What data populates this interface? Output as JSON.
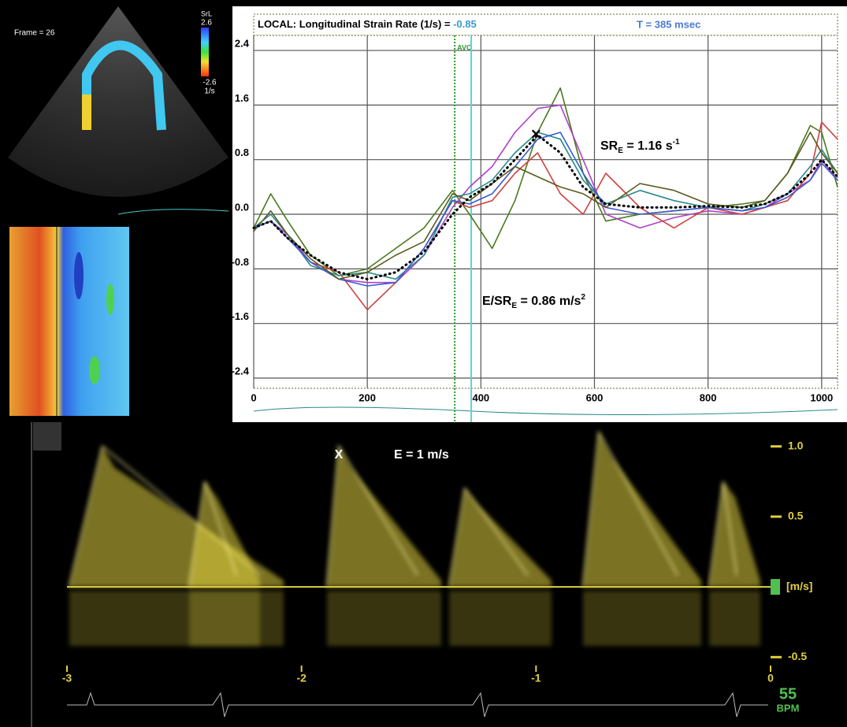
{
  "echo_image": {
    "frame_label": "Frame = 26",
    "colorbar_title": "SrL",
    "colorbar_max": "2.6",
    "colorbar_min": "-2.6",
    "colorbar_unit": "1/s"
  },
  "heart_rate": {
    "value": 55,
    "unit": "BPM"
  },
  "chart_data": [
    {
      "type": "line",
      "title": "LOCAL: Longitudinal Strain Rate (1/s) = ",
      "title_value": -0.85,
      "time_label": "T = 385 msec",
      "x": [
        0,
        30,
        60,
        100,
        150,
        200,
        250,
        300,
        350,
        380,
        420,
        460,
        500,
        540,
        580,
        620,
        680,
        740,
        800,
        860,
        900,
        940,
        980,
        1000,
        1028
      ],
      "series": [
        {
          "color": "#4a7a1e",
          "values": [
            -0.2,
            0.3,
            -0.1,
            -0.6,
            -0.9,
            -0.8,
            -0.5,
            -0.2,
            0.35,
            0.0,
            -0.5,
            0.2,
            1.2,
            1.85,
            0.6,
            -0.1,
            0.0,
            0.05,
            0.1,
            0.15,
            0.2,
            0.6,
            1.3,
            1.2,
            0.4
          ]
        },
        {
          "color": "#b040c8",
          "values": [
            -0.2,
            -0.1,
            -0.3,
            -0.7,
            -0.95,
            -1.0,
            -1.0,
            -0.6,
            0.1,
            0.4,
            0.7,
            1.2,
            1.55,
            1.6,
            0.8,
            0.0,
            -0.2,
            -0.05,
            0.05,
            0.0,
            0.1,
            0.3,
            0.5,
            0.8,
            0.5
          ]
        },
        {
          "color": "#d04040",
          "values": [
            -0.2,
            -0.1,
            -0.35,
            -0.7,
            -0.85,
            -1.4,
            -1.0,
            -0.5,
            0.2,
            0.1,
            0.2,
            0.6,
            0.9,
            0.3,
            0.0,
            0.6,
            0.1,
            -0.2,
            0.1,
            0.0,
            0.1,
            0.2,
            0.6,
            1.35,
            1.1
          ]
        },
        {
          "color": "#2a8a8a",
          "values": [
            -0.2,
            0.0,
            -0.3,
            -0.75,
            -0.9,
            -0.85,
            -0.95,
            -0.6,
            0.25,
            0.3,
            0.5,
            0.9,
            1.2,
            1.1,
            0.5,
            0.15,
            0.35,
            0.2,
            0.1,
            0.05,
            0.15,
            0.3,
            0.7,
            0.95,
            0.6
          ]
        },
        {
          "color": "#3a5ad0",
          "values": [
            -0.2,
            -0.1,
            -0.35,
            -0.7,
            -0.95,
            -1.05,
            -1.0,
            -0.5,
            0.2,
            0.15,
            0.3,
            0.7,
            1.1,
            1.2,
            0.6,
            0.1,
            0.0,
            0.05,
            0.1,
            0.05,
            0.1,
            0.25,
            0.5,
            0.75,
            0.5
          ]
        },
        {
          "color": "#5a5a20",
          "values": [
            -0.25,
            0.05,
            -0.3,
            -0.65,
            -0.95,
            -0.85,
            -0.6,
            -0.4,
            0.3,
            0.2,
            0.45,
            0.7,
            0.55,
            0.4,
            0.3,
            0.1,
            0.45,
            0.35,
            0.15,
            0.1,
            0.2,
            0.6,
            1.2,
            0.9,
            0.6
          ]
        },
        {
          "color": "#000000",
          "style": "dotted",
          "values": [
            -0.2,
            -0.1,
            -0.35,
            -0.6,
            -0.85,
            -0.95,
            -0.85,
            -0.55,
            0.0,
            0.25,
            0.45,
            0.8,
            1.16,
            0.9,
            0.4,
            0.15,
            0.1,
            0.1,
            0.12,
            0.1,
            0.15,
            0.3,
            0.6,
            0.8,
            0.55
          ]
        }
      ],
      "xlim": [
        0,
        1028
      ],
      "ylim": [
        -2.55,
        2.62
      ],
      "xticks": [
        0,
        200,
        400,
        600,
        800,
        1000
      ],
      "yticks": [
        2.4,
        1.6,
        0.8,
        {
          "value": 0,
          "label": "0.0"
        },
        -0.8,
        -1.6,
        -2.4
      ],
      "grid": true,
      "vlines": [
        {
          "x": 354,
          "label": "AVC",
          "color": "#2a9a2a"
        },
        {
          "x": 383,
          "color": "#5fd0d8"
        }
      ],
      "peak_marker": {
        "x": 497,
        "y": 1.16,
        "label": "×"
      },
      "annotations": [
        {
          "main": "SR",
          "sub": "E",
          "after": " = 1.16 s",
          "sup": "-1"
        },
        {
          "main": "E/SR",
          "sub": "E",
          "after": " = 0.86 m/s",
          "sup": "2"
        }
      ]
    },
    {
      "type": "spectral",
      "xlim": [
        -3,
        0
      ],
      "ylim": [
        -0.56,
        1.15
      ],
      "xticks": [
        -3,
        -2,
        -1,
        0
      ],
      "yticks": [
        {
          "value": 1,
          "label": "1.0"
        },
        0.5,
        -0.5
      ],
      "y_unit": "[m/s]",
      "annotations": [
        {
          "label": "X"
        },
        {
          "label": "E = 1 m/s"
        }
      ],
      "color": "#e0d040"
    }
  ]
}
